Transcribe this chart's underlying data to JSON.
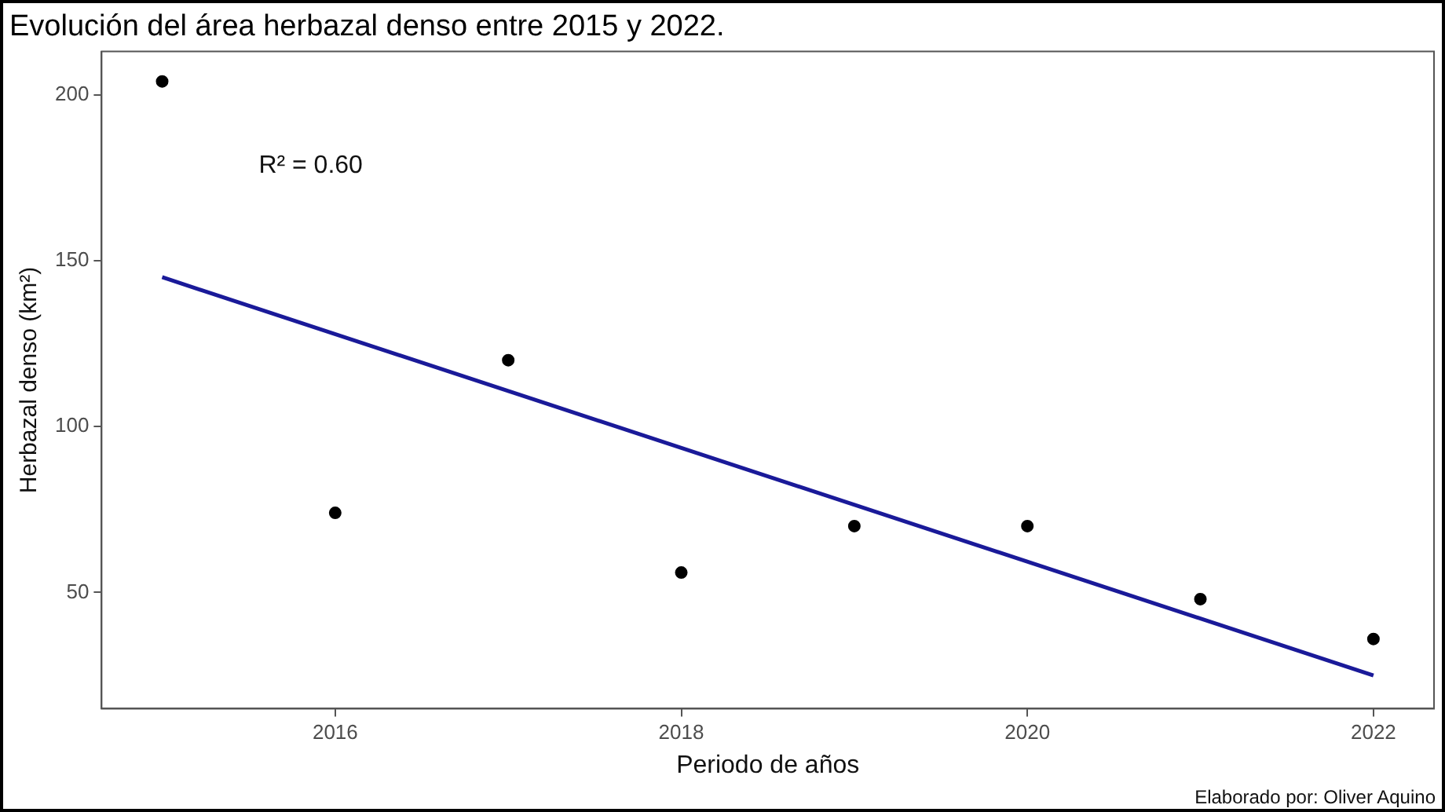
{
  "chart_data": {
    "type": "scatter",
    "title": "Evolución del área herbazal denso entre 2015 y 2022.",
    "xlabel": "Periodo de años",
    "ylabel": "Herbazal denso (km²)",
    "annotations": [
      "R² = 0.60",
      "Elaborado por: Oliver Aquino"
    ],
    "series": [
      {
        "color": "#000000",
        "marker": "circle",
        "x": [
          2015,
          2016,
          2017,
          2018,
          2019,
          2020,
          2021,
          2022
        ],
        "values": [
          204,
          74,
          120,
          56,
          70,
          70,
          48,
          36
        ]
      },
      {
        "type": "line",
        "marker": "none",
        "color": "#1a1a99",
        "x": [
          2015,
          2022
        ],
        "values": [
          145,
          25
        ]
      }
    ],
    "xlim": [
      2014.65,
      2022.35
    ],
    "xticks": [
      2016,
      2018,
      2020,
      2022
    ],
    "ylim": [
      15,
      213
    ],
    "yticks": [
      50,
      100,
      150,
      200
    ],
    "grid": false,
    "legend": false,
    "line_style": "solid"
  }
}
